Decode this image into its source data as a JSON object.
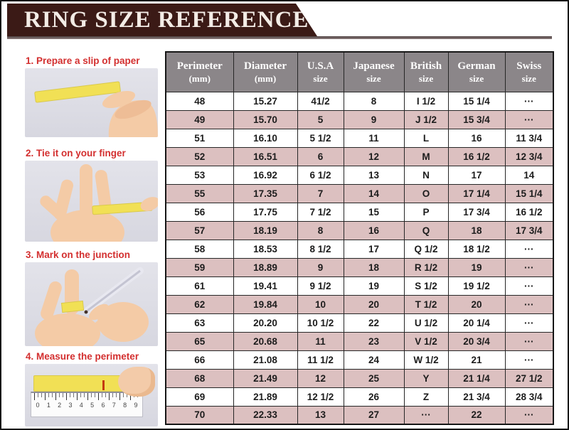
{
  "header": {
    "title": "RING SIZE REFERENCE"
  },
  "steps": [
    {
      "label": "1. Prepare a slip of paper"
    },
    {
      "label": "2. Tie it on your finger"
    },
    {
      "label": "3. Mark on the junction"
    },
    {
      "label": "4. Measure the perimeter"
    }
  ],
  "ruler": {
    "numbers": [
      "0",
      "1",
      "2",
      "3",
      "4",
      "5",
      "6",
      "7",
      "8",
      "9"
    ]
  },
  "table": {
    "headers": [
      {
        "line1": "Perimeter",
        "line2": "(mm)"
      },
      {
        "line1": "Diameter",
        "line2": "(mm)"
      },
      {
        "line1": "U.S.A",
        "line2": "size"
      },
      {
        "line1": "Japanese",
        "line2": "size"
      },
      {
        "line1": "British",
        "line2": "size"
      },
      {
        "line1": "German",
        "line2": "size"
      },
      {
        "line1": "Swiss",
        "line2": "size"
      }
    ],
    "rows": [
      [
        "48",
        "15.27",
        "41/2",
        "8",
        "I 1/2",
        "15 1/4",
        "···"
      ],
      [
        "49",
        "15.70",
        "5",
        "9",
        "J 1/2",
        "15 3/4",
        "···"
      ],
      [
        "51",
        "16.10",
        "5 1/2",
        "11",
        "L",
        "16",
        "11 3/4"
      ],
      [
        "52",
        "16.51",
        "6",
        "12",
        "M",
        "16 1/2",
        "12 3/4"
      ],
      [
        "53",
        "16.92",
        "6 1/2",
        "13",
        "N",
        "17",
        "14"
      ],
      [
        "55",
        "17.35",
        "7",
        "14",
        "O",
        "17 1/4",
        "15 1/4"
      ],
      [
        "56",
        "17.75",
        "7 1/2",
        "15",
        "P",
        "17 3/4",
        "16 1/2"
      ],
      [
        "57",
        "18.19",
        "8",
        "16",
        "Q",
        "18",
        "17 3/4"
      ],
      [
        "58",
        "18.53",
        "8 1/2",
        "17",
        "Q 1/2",
        "18 1/2",
        "···"
      ],
      [
        "59",
        "18.89",
        "9",
        "18",
        "R 1/2",
        "19",
        "···"
      ],
      [
        "61",
        "19.41",
        "9 1/2",
        "19",
        "S 1/2",
        "19 1/2",
        "···"
      ],
      [
        "62",
        "19.84",
        "10",
        "20",
        "T 1/2",
        "20",
        "···"
      ],
      [
        "63",
        "20.20",
        "10 1/2",
        "22",
        "U 1/2",
        "20 1/4",
        "···"
      ],
      [
        "65",
        "20.68",
        "11",
        "23",
        "V 1/2",
        "20 3/4",
        "···"
      ],
      [
        "66",
        "21.08",
        "11 1/2",
        "24",
        "W 1/2",
        "21",
        "···"
      ],
      [
        "68",
        "21.49",
        "12",
        "25",
        "Y",
        "21 1/4",
        "27 1/2"
      ],
      [
        "69",
        "21.89",
        "12 1/2",
        "26",
        "Z",
        "21 3/4",
        "28 3/4"
      ],
      [
        "70",
        "22.33",
        "13",
        "27",
        "···",
        "22",
        "···"
      ]
    ]
  },
  "colors": {
    "banner": "#3b1a16",
    "table_header_bg": "#8b8689",
    "row_pink": "#dcc0c0",
    "row_white": "#ffffff",
    "step_label_red": "#d32f2f",
    "photo_bg": "#dbdbe3",
    "slip_yellow": "#f1e055"
  }
}
